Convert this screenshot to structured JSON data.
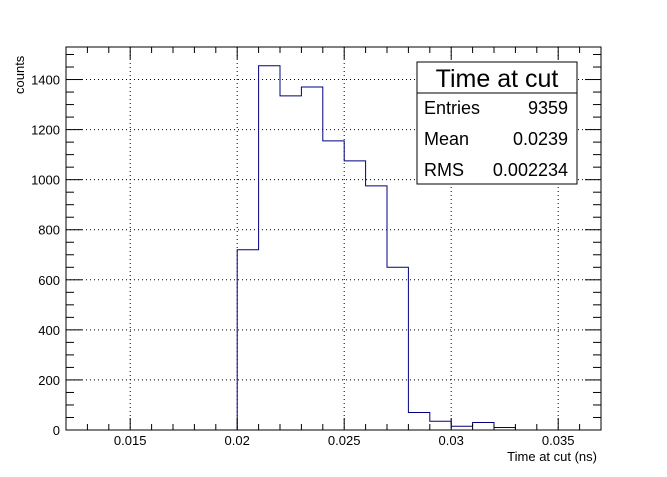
{
  "chart_data": {
    "type": "bar",
    "style": "step-histogram",
    "xlabel": "Time at cut (ns)",
    "ylabel": "counts",
    "xlim": [
      0.012,
      0.037
    ],
    "ylim": [
      0,
      1530
    ],
    "grid": true,
    "xticks": [
      0.015,
      0.02,
      0.025,
      0.03,
      0.035
    ],
    "xtick_labels": [
      "0.015",
      "0.02",
      "0.025",
      "0.03",
      "0.035"
    ],
    "yticks": [
      0,
      200,
      400,
      600,
      800,
      1000,
      1200,
      1400
    ],
    "ytick_labels": [
      "0",
      "200",
      "400",
      "600",
      "800",
      "1000",
      "1200",
      "1400"
    ],
    "bin_edges": [
      0.02,
      0.021,
      0.022,
      0.023,
      0.024,
      0.025,
      0.026,
      0.027,
      0.028,
      0.029,
      0.03,
      0.031,
      0.032,
      0.033
    ],
    "values": [
      720,
      1455,
      1335,
      1370,
      1155,
      1075,
      975,
      650,
      70,
      35,
      15,
      30,
      10
    ],
    "line_color": "#000080",
    "stats_box": {
      "title": "Time at cut",
      "placement": "top-right",
      "rows": [
        {
          "label": "Entries",
          "value": "9359"
        },
        {
          "label": "Mean",
          "value": "0.0239"
        },
        {
          "label": "RMS",
          "value": "0.002234"
        }
      ]
    }
  }
}
